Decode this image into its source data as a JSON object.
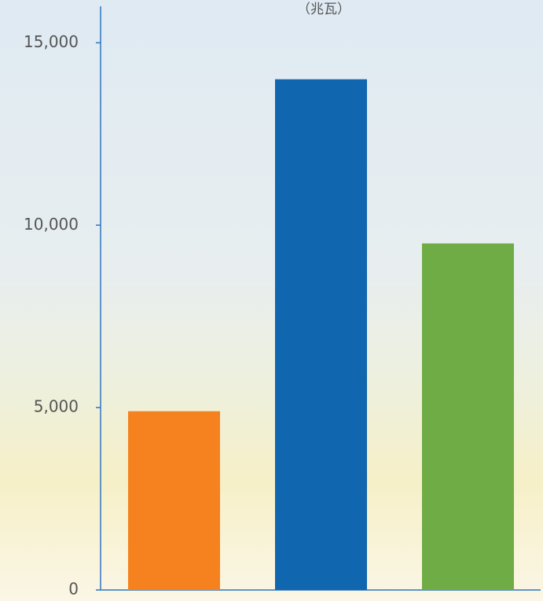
{
  "chart_data": {
    "type": "bar",
    "title": "（兆瓦）",
    "categories": [
      null,
      null,
      null
    ],
    "values": [
      4900,
      14000,
      9500
    ],
    "colors": [
      "#f5821f",
      "#1166b0",
      "#6fac46"
    ],
    "ylim": [
      0,
      16000
    ],
    "yticks": [
      0,
      {
        "value": 5000,
        "label": "5,000"
      },
      {
        "value": 10000,
        "label": "10,000"
      },
      {
        "value": 15000,
        "label": "15,000"
      }
    ],
    "grid": false
  }
}
